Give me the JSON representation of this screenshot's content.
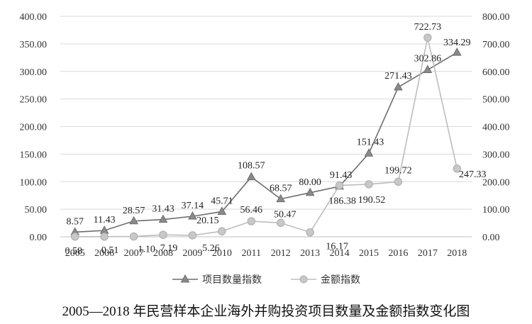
{
  "caption": "2005—2018 年民营样本企业海外并购投资项目数量及金额指数变化图",
  "chart_data": {
    "type": "line",
    "title": "",
    "categories": [
      "2005",
      "2006",
      "2007",
      "2008",
      "2009",
      "2010",
      "2011",
      "2012",
      "2013",
      "2014",
      "2015",
      "2016",
      "2017",
      "2018"
    ],
    "left_axis": {
      "min": 0,
      "max": 400,
      "step": 50,
      "tick_labels": [
        "0.00",
        "50.00",
        "100.00",
        "150.00",
        "200.00",
        "250.00",
        "300.00",
        "350.00",
        "400.00"
      ]
    },
    "right_axis": {
      "min": 0,
      "max": 800,
      "step": 100,
      "tick_labels": [
        "0.00",
        "100.00",
        "200.00",
        "300.00",
        "400.00",
        "500.00",
        "600.00",
        "700.00",
        "800.00"
      ]
    },
    "grid": true,
    "legend_position": "bottom",
    "series": [
      {
        "name": "项目数量指数",
        "axis": "left",
        "marker": "triangle",
        "color": "#6e6e6e",
        "values": [
          8.57,
          11.43,
          28.57,
          31.43,
          37.14,
          45.71,
          108.57,
          68.57,
          80.0,
          91.43,
          151.43,
          271.43,
          302.86,
          334.29
        ],
        "labels": [
          "8.57",
          "11.43",
          "28.57",
          "31.43",
          "37.14",
          "45.71",
          "108.57",
          "68.57",
          "80.00",
          "91.43",
          "151.43",
          "271.43",
          "302.86",
          "334.29"
        ]
      },
      {
        "name": "金额指数",
        "axis": "right",
        "marker": "circle",
        "color": "#bdbdbd",
        "values": [
          0.58,
          0.51,
          1.1,
          7.19,
          5.26,
          20.15,
          56.46,
          50.47,
          16.17,
          186.38,
          190.52,
          199.72,
          722.73,
          247.33
        ],
        "labels": [
          "0.58",
          "0.51",
          "1.10",
          "7.19",
          "5.26",
          "20.15",
          "56.46",
          "50.47",
          "16.17",
          "186.38",
          "190.52",
          "199.72",
          "722.73",
          "247.33"
        ]
      }
    ]
  }
}
